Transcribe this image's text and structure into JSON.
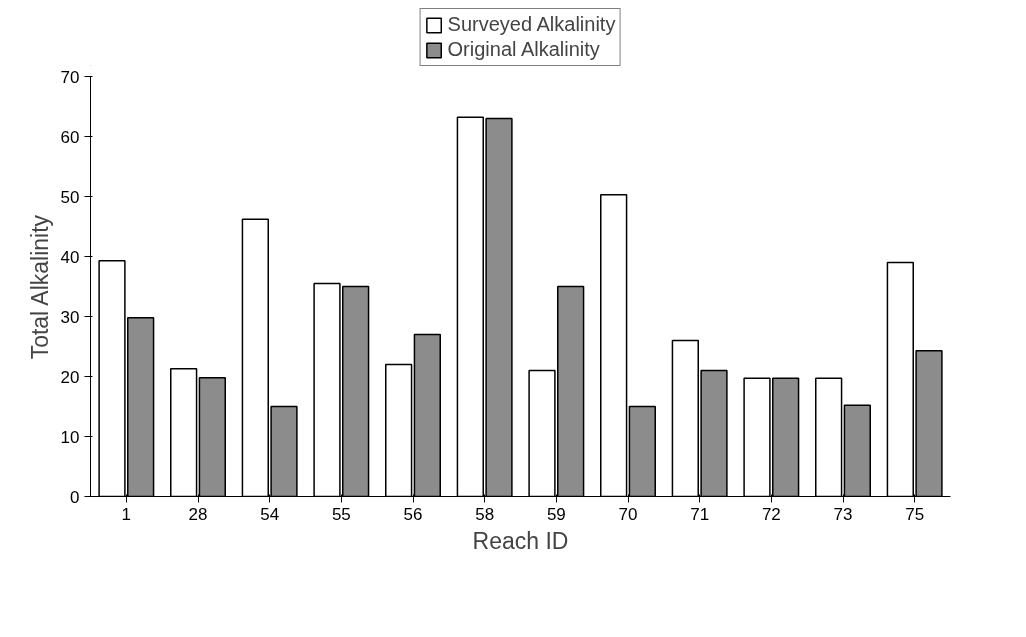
{
  "chart_data": {
    "type": "bar",
    "xlabel": "Reach ID",
    "ylabel": "Total Alkalinity",
    "categories": [
      "1",
      "28",
      "54",
      "55",
      "56",
      "58",
      "59",
      "70",
      "71",
      "72",
      "73",
      "75"
    ],
    "series": [
      {
        "name": "Surveyed Alkalinity",
        "color": "#ffffff",
        "values": [
          39.3,
          21.3,
          46.2,
          35.5,
          22,
          63.2,
          21,
          50.3,
          26,
          19.7,
          19.7,
          39
        ]
      },
      {
        "name": "Original Alkalinity",
        "color": "#8c8c8c",
        "values": [
          29.8,
          19.8,
          15,
          35,
          27,
          63,
          35,
          15,
          21,
          19.7,
          15.2,
          24.3
        ]
      }
    ],
    "ylim": [
      0,
      70
    ],
    "yticks": [
      0,
      10,
      20,
      30,
      40,
      50,
      60,
      70
    ],
    "grid": false,
    "legend": "top"
  }
}
